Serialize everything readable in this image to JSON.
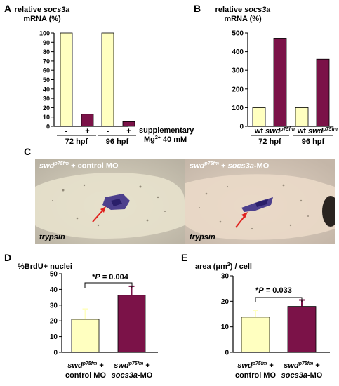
{
  "colors": {
    "wt_bar": "#ffffc0",
    "mutant_bar": "#7b1248",
    "axis": "#000000",
    "arrow": "#e0221e",
    "stain": "#3c2f86"
  },
  "panels": {
    "A": {
      "letter": "A",
      "ylabel_prefix": "relative ",
      "ylabel_gene": "socs3a",
      "ylabel_unit": "mRNA (%)",
      "xaxis_note_line1": "supplementary",
      "xaxis_note_line2": "Mg",
      "xaxis_note_sup": "2+",
      "xaxis_note_suffix": " 40 mM",
      "bar_signs": [
        "-",
        "+",
        "-",
        "+"
      ],
      "groups": [
        "72 hpf",
        "96 hpf"
      ]
    },
    "B": {
      "letter": "B",
      "ylabel_prefix": "relative ",
      "ylabel_gene": "socs3a",
      "ylabel_unit": "mRNA (%)",
      "labels": [
        {
          "base": "wt",
          "sup": ""
        },
        {
          "base": "swd",
          "sup": "p75fm"
        },
        {
          "base": "wt",
          "sup": ""
        },
        {
          "base": "swd",
          "sup": "p75fm"
        }
      ],
      "groups": [
        "72 hpf",
        "96 hpf"
      ]
    },
    "C": {
      "letter": "C",
      "left_title_gene": "swd",
      "left_title_sup": "p75fm",
      "left_title_rest": " + control MO",
      "right_title_gene": "swd",
      "right_title_sup": "p75fm",
      "right_title_mid": " + ",
      "right_title_mo": "socs3a",
      "right_title_end": "-MO",
      "stain_label": "trypsin"
    },
    "D": {
      "letter": "D",
      "ylabel": "%BrdU+ nuclei",
      "sig_star": "*",
      "sig_p": "P",
      "sig_value": " = 0.004",
      "labels": [
        {
          "line1_base": "swd",
          "line1_sup": "p75fm",
          "line1_tail": " +",
          "line2_pre": "",
          "line2_ital": "",
          "line2_post": "control MO"
        },
        {
          "line1_base": "swd",
          "line1_sup": "p75fm",
          "line1_tail": " +",
          "line2_pre": "",
          "line2_ital": "socs3a",
          "line2_post": "-MO"
        }
      ]
    },
    "E": {
      "letter": "E",
      "ylabel_pre": "area (",
      "ylabel_unit": "μm",
      "ylabel_sup": "2",
      "ylabel_post": ") / cell",
      "sig_star": "*",
      "sig_p": "P",
      "sig_value": " = 0.033",
      "labels": [
        {
          "line1_base": "swd",
          "line1_sup": "p75fm",
          "line1_tail": " +",
          "line2_pre": "",
          "line2_ital": "",
          "line2_post": "control MO"
        },
        {
          "line1_base": "swd",
          "line1_sup": "p75fm",
          "line1_tail": " +",
          "line2_pre": "",
          "line2_ital": "socs3a",
          "line2_post": "-MO"
        }
      ]
    }
  },
  "chart_data": [
    {
      "panel": "A",
      "type": "bar",
      "categories": [
        "72 hpf -",
        "72 hpf +",
        "96 hpf -",
        "96 hpf +"
      ],
      "values": [
        100,
        13,
        100,
        5
      ],
      "ylim": [
        0,
        100
      ],
      "yticks": [
        0,
        10,
        20,
        30,
        40,
        50,
        60,
        70,
        80,
        90,
        100
      ]
    },
    {
      "panel": "B",
      "type": "bar",
      "categories": [
        "72 hpf wt",
        "72 hpf swd p75fm",
        "96 hpf wt",
        "96 hpf swd p75fm"
      ],
      "values": [
        100,
        472,
        100,
        360
      ],
      "ylim": [
        0,
        500
      ],
      "yticks": [
        0,
        100,
        200,
        300,
        400,
        500
      ]
    },
    {
      "panel": "D",
      "type": "bar",
      "categories": [
        "swd p75fm + control MO",
        "swd p75fm + socs3a-MO"
      ],
      "values": [
        21,
        36.3
      ],
      "errors": [
        6.5,
        5.7
      ],
      "ylim": [
        0,
        50
      ],
      "yticks": [
        0,
        10,
        20,
        30,
        40,
        50
      ]
    },
    {
      "panel": "E",
      "type": "bar",
      "categories": [
        "swd p75fm + control MO",
        "swd p75fm + socs3a-MO"
      ],
      "values": [
        13.8,
        18
      ],
      "errors": [
        2.7,
        2.5
      ],
      "ylim": [
        0,
        30
      ],
      "yticks": [
        0,
        10,
        20,
        30
      ]
    }
  ]
}
